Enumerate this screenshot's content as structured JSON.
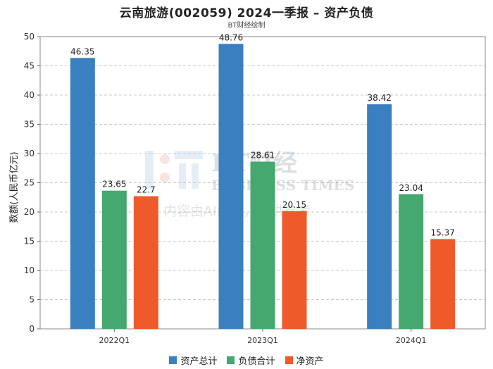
{
  "chart_data": {
    "type": "bar",
    "title": "云南旅游(002059) 2024一季报 – 资产负债",
    "subtitle": "BT财经绘制",
    "ylabel": "数额(人民币亿元)",
    "xlabel": "",
    "ylim": [
      0,
      50
    ],
    "yticks": [
      0,
      5,
      10,
      15,
      20,
      25,
      30,
      35,
      40,
      45,
      50
    ],
    "grid": true,
    "legend_position": "bottom",
    "categories": [
      "2022Q1",
      "2023Q1",
      "2024Q1"
    ],
    "series": [
      {
        "name": "资产总计",
        "color": "#3a7fbf",
        "values": [
          46.35,
          48.76,
          38.42
        ],
        "labels": [
          "46.35",
          "48.76",
          "38.42"
        ]
      },
      {
        "name": "负债合计",
        "color": "#45a86e",
        "values": [
          23.65,
          28.61,
          23.04
        ],
        "labels": [
          "23.65",
          "28.61",
          "23.04"
        ]
      },
      {
        "name": "净资产",
        "color": "#ef5a2b",
        "values": [
          22.7,
          20.15,
          15.37
        ],
        "labels": [
          "22.7",
          "20.15",
          "15.37"
        ]
      }
    ]
  },
  "watermark": {
    "brand": "BT财经",
    "english": "BUSINESS TIMES",
    "notice": "内容由AI生成，仅供参考"
  }
}
